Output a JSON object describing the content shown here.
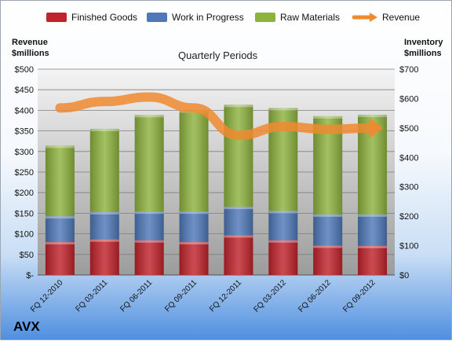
{
  "chart_data": {
    "type": "bar",
    "subtitle": "Quarterly Periods",
    "company": "AVX",
    "categories": [
      "FQ 12-2010",
      "FQ 03-2011",
      "FQ 06-2011",
      "FQ 09-2011",
      "FQ 12-2011",
      "FQ 03-2012",
      "FQ 06-2012",
      "FQ 09-2012"
    ],
    "stacked": true,
    "y_left": {
      "title_line1": "Revenue",
      "title_line2": "$millions",
      "ylim": [
        0,
        500
      ],
      "ticks": [
        "$-",
        "$50",
        "$100",
        "$150",
        "$200",
        "$250",
        "$300",
        "$350",
        "$400",
        "$450",
        "$500"
      ]
    },
    "y_right": {
      "title_line1": "Inventory",
      "title_line2": "$millions",
      "ylim": [
        0,
        700
      ],
      "ticks": [
        "$0",
        "$100",
        "$200",
        "$300",
        "$400",
        "$500",
        "$600",
        "$700"
      ]
    },
    "series": [
      {
        "name": "Finished Goods",
        "kind": "bar",
        "axis": "right",
        "color": "#c0232b",
        "values": [
          112,
          121,
          118,
          112,
          135,
          118,
          100,
          99
        ]
      },
      {
        "name": "Work in Progress",
        "kind": "bar",
        "axis": "right",
        "color": "#4f78b8",
        "values": [
          88,
          93,
          98,
          104,
          97,
          100,
          106,
          107
        ]
      },
      {
        "name": "Raw Materials",
        "kind": "bar",
        "axis": "right",
        "color": "#8db33e",
        "values": [
          240,
          283,
          328,
          344,
          347,
          350,
          334,
          339
        ]
      },
      {
        "name": "Revenue",
        "kind": "line",
        "axis": "right",
        "color": "#f08a30",
        "values": [
          568,
          590,
          605,
          568,
          475,
          505,
          495,
          500
        ]
      }
    ],
    "grid": true,
    "legend_position": "top"
  }
}
